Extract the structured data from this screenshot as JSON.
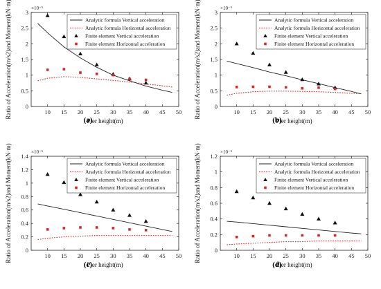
{
  "figure": {
    "background": "#ffffff"
  },
  "colors": {
    "vertical": "#222222",
    "horizontal": "#d62728",
    "axis": "#222222"
  },
  "chart_data": [
    {
      "type": "line",
      "caption": "(a)",
      "xlabel": "Pier height(m)",
      "ylabel": "Ratio of Acceleration(m/s2)and Moment(kN·m)",
      "yexp": "×10⁻⁵",
      "xlim": [
        5,
        50
      ],
      "ylim": [
        0,
        3
      ],
      "xticks": [
        10,
        15,
        20,
        25,
        30,
        35,
        40,
        45,
        50
      ],
      "yticks": [
        0,
        0.5,
        1,
        1.5,
        2,
        2.5,
        3
      ],
      "legend_position": "top-right",
      "series": [
        {
          "name": "Analytic formula Vertical acceleration",
          "kind": "line-solid",
          "color": "#222222",
          "x": [
            7,
            10,
            15,
            20,
            25,
            30,
            35,
            40,
            45,
            48
          ],
          "y": [
            2.65,
            2.35,
            1.9,
            1.55,
            1.25,
            1.0,
            0.82,
            0.65,
            0.52,
            0.45
          ]
        },
        {
          "name": "Analytic formula Horizontal acceleration",
          "kind": "line-dotted",
          "color": "#d62728",
          "x": [
            7,
            10,
            15,
            20,
            25,
            30,
            35,
            40,
            45,
            48
          ],
          "y": [
            0.82,
            0.9,
            0.95,
            0.93,
            0.88,
            0.83,
            0.78,
            0.72,
            0.66,
            0.62
          ]
        },
        {
          "name": "Finite element Vertical acceleration",
          "kind": "marker-triangle",
          "color": "#111111",
          "x": [
            10,
            15,
            20,
            25,
            30,
            35,
            40
          ],
          "y": [
            2.9,
            2.23,
            1.68,
            1.33,
            1.03,
            0.88,
            0.75
          ]
        },
        {
          "name": "Finite element Horizontal acceleration",
          "kind": "marker-square",
          "color": "#d62728",
          "x": [
            10,
            15,
            20,
            25,
            30,
            35,
            40
          ],
          "y": [
            1.17,
            1.19,
            1.08,
            1.04,
            1.0,
            0.88,
            0.85
          ]
        }
      ]
    },
    {
      "type": "line",
      "caption": "(b)",
      "xlabel": "Pier height(m)",
      "ylabel": "Ratio of Acceleration(m/s2)and Moment(kN·m)",
      "yexp": "×10⁻⁵",
      "xlim": [
        5,
        50
      ],
      "ylim": [
        0,
        3
      ],
      "xticks": [
        10,
        15,
        20,
        25,
        30,
        35,
        40,
        45,
        50
      ],
      "yticks": [
        0,
        0.5,
        1,
        1.5,
        2,
        2.5,
        3
      ],
      "legend_position": "top-right",
      "series": [
        {
          "name": "Analytic formula Vertical acceleration",
          "kind": "line-solid",
          "color": "#222222",
          "x": [
            7,
            10,
            15,
            20,
            25,
            30,
            35,
            40,
            45,
            48
          ],
          "y": [
            1.45,
            1.37,
            1.24,
            1.1,
            0.98,
            0.85,
            0.73,
            0.6,
            0.48,
            0.4
          ]
        },
        {
          "name": "Analytic formula Horizontal acceleration",
          "kind": "line-dotted",
          "color": "#d62728",
          "x": [
            7,
            10,
            15,
            20,
            25,
            30,
            35,
            40,
            45,
            48
          ],
          "y": [
            0.36,
            0.42,
            0.47,
            0.49,
            0.49,
            0.48,
            0.47,
            0.45,
            0.42,
            0.41
          ]
        },
        {
          "name": "Finite element Vertical acceleration",
          "kind": "marker-triangle",
          "color": "#111111",
          "x": [
            10,
            15,
            20,
            25,
            30,
            35,
            40
          ],
          "y": [
            2.0,
            1.7,
            1.33,
            1.09,
            0.86,
            0.72,
            0.6
          ]
        },
        {
          "name": "Finite element Horizontal acceleration",
          "kind": "marker-square",
          "color": "#d62728",
          "x": [
            10,
            15,
            20,
            25,
            30,
            35,
            40
          ],
          "y": [
            0.62,
            0.63,
            0.63,
            0.61,
            0.58,
            0.6,
            0.56
          ]
        }
      ]
    },
    {
      "type": "line",
      "caption": "(c)",
      "xlabel": "Pier height(m)",
      "ylabel": "Ratio of Acceleration(m/s2)and Moment(kN·m)",
      "yexp": "×10⁻⁵",
      "xlim": [
        5,
        50
      ],
      "ylim": [
        0,
        1.4
      ],
      "xticks": [
        10,
        15,
        20,
        25,
        30,
        35,
        40,
        45,
        50
      ],
      "yticks": [
        0,
        0.2,
        0.4,
        0.6,
        0.8,
        1,
        1.2,
        1.4
      ],
      "legend_position": "top-right",
      "series": [
        {
          "name": "Analytic formula Vertical acceleration",
          "kind": "line-solid",
          "color": "#222222",
          "x": [
            7,
            10,
            15,
            20,
            25,
            30,
            35,
            40,
            45,
            48
          ],
          "y": [
            0.69,
            0.66,
            0.61,
            0.56,
            0.51,
            0.46,
            0.41,
            0.36,
            0.31,
            0.28
          ]
        },
        {
          "name": "Analytic formula Horizontal acceleration",
          "kind": "line-dotted",
          "color": "#d62728",
          "x": [
            7,
            10,
            15,
            20,
            25,
            30,
            35,
            40,
            45,
            48
          ],
          "y": [
            0.16,
            0.18,
            0.2,
            0.21,
            0.22,
            0.22,
            0.22,
            0.22,
            0.22,
            0.22
          ]
        },
        {
          "name": "Finite element Vertical acceleration",
          "kind": "marker-triangle",
          "color": "#111111",
          "x": [
            10,
            15,
            20,
            25,
            30,
            35,
            40
          ],
          "y": [
            1.13,
            1.01,
            0.83,
            0.72,
            0.6,
            0.52,
            0.43
          ]
        },
        {
          "name": "Finite element Horizontal acceleration",
          "kind": "marker-square",
          "color": "#d62728",
          "x": [
            10,
            15,
            20,
            25,
            30,
            35,
            40
          ],
          "y": [
            0.31,
            0.33,
            0.34,
            0.34,
            0.33,
            0.31,
            0.3
          ]
        }
      ]
    },
    {
      "type": "line",
      "caption": "(d)",
      "xlabel": "Pier height(m)",
      "ylabel": "Ratio of Acceleration(m/s2)and Moment(kN·m)",
      "yexp": "×10⁻⁵",
      "xlim": [
        5,
        50
      ],
      "ylim": [
        0,
        1.2
      ],
      "xticks": [
        10,
        15,
        20,
        25,
        30,
        35,
        40,
        45,
        50
      ],
      "yticks": [
        0,
        0.2,
        0.4,
        0.6,
        0.8,
        1,
        1.2
      ],
      "legend_position": "top-right",
      "series": [
        {
          "name": "Analytic formula Vertical acceleration",
          "kind": "line-solid",
          "color": "#222222",
          "x": [
            7,
            10,
            15,
            20,
            25,
            30,
            35,
            40,
            45,
            48
          ],
          "y": [
            0.37,
            0.36,
            0.34,
            0.32,
            0.3,
            0.28,
            0.26,
            0.24,
            0.22,
            0.21
          ]
        },
        {
          "name": "Analytic formula Horizontal acceleration",
          "kind": "line-dotted",
          "color": "#d62728",
          "x": [
            7,
            10,
            15,
            20,
            25,
            30,
            35,
            40,
            45,
            48
          ],
          "y": [
            0.07,
            0.08,
            0.09,
            0.1,
            0.11,
            0.11,
            0.12,
            0.12,
            0.12,
            0.12
          ]
        },
        {
          "name": "Finite element Vertical acceleration",
          "kind": "marker-triangle",
          "color": "#111111",
          "x": [
            10,
            15,
            20,
            25,
            30,
            35,
            40
          ],
          "y": [
            0.75,
            0.67,
            0.6,
            0.53,
            0.46,
            0.4,
            0.35
          ]
        },
        {
          "name": "Finite element Horizontal acceleration",
          "kind": "marker-square",
          "color": "#d62728",
          "x": [
            10,
            15,
            20,
            25,
            30,
            35,
            40
          ],
          "y": [
            0.17,
            0.18,
            0.19,
            0.19,
            0.19,
            0.19,
            0.19
          ]
        }
      ]
    }
  ]
}
